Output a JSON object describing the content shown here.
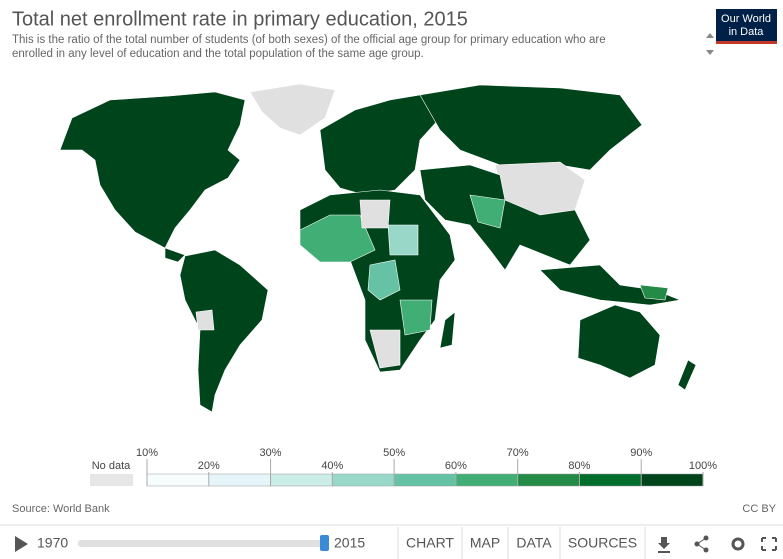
{
  "header": {
    "title": "Total net enrollment rate in primary education, 2015",
    "subtitle_line1": "This is the ratio of the total number of students (of both sexes) of the official age group for primary education who are",
    "subtitle_line2": "enrolled in any level of education and the total population of the same age group."
  },
  "logo": {
    "line1": "Our World",
    "line2": "in Data"
  },
  "legend": {
    "no_data": "No data",
    "labels": [
      "10%",
      "20%",
      "30%",
      "40%",
      "50%",
      "60%",
      "70%",
      "80%",
      "90%",
      "100%"
    ]
  },
  "source": "Source: World Bank",
  "license": "CC BY",
  "footer": {
    "start_year": "1970",
    "end_year": "2015",
    "tabs": [
      "CHART",
      "MAP",
      "DATA",
      "SOURCES"
    ]
  }
}
